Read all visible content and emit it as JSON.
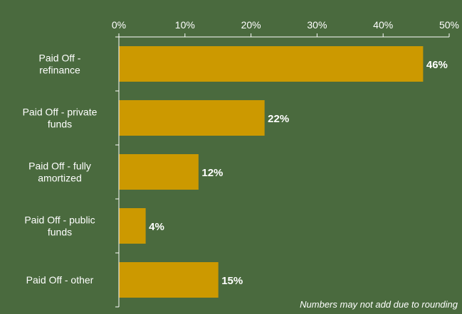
{
  "chart_data": {
    "type": "bar",
    "orientation": "horizontal",
    "categories": [
      [
        "Paid Off -",
        "refinance"
      ],
      [
        "Paid Off - private",
        "funds"
      ],
      [
        "Paid Off - fully",
        "amortized"
      ],
      [
        "Paid Off - public",
        "funds"
      ],
      [
        "Paid Off - other"
      ]
    ],
    "values": [
      46,
      22,
      12,
      4,
      15
    ],
    "data_labels": [
      "46%",
      "22%",
      "12%",
      "4%",
      "15%"
    ],
    "xlim": [
      0,
      50
    ],
    "ticks": [
      0,
      10,
      20,
      30,
      40,
      50
    ],
    "tick_labels": [
      "0%",
      "10%",
      "20%",
      "30%",
      "40%",
      "50%"
    ],
    "axis_position": "top",
    "grid": false,
    "legend": "none",
    "bar_color": "#cc9900",
    "background_color": "#4a6a3e",
    "note": "Numbers may not add due to rounding"
  }
}
